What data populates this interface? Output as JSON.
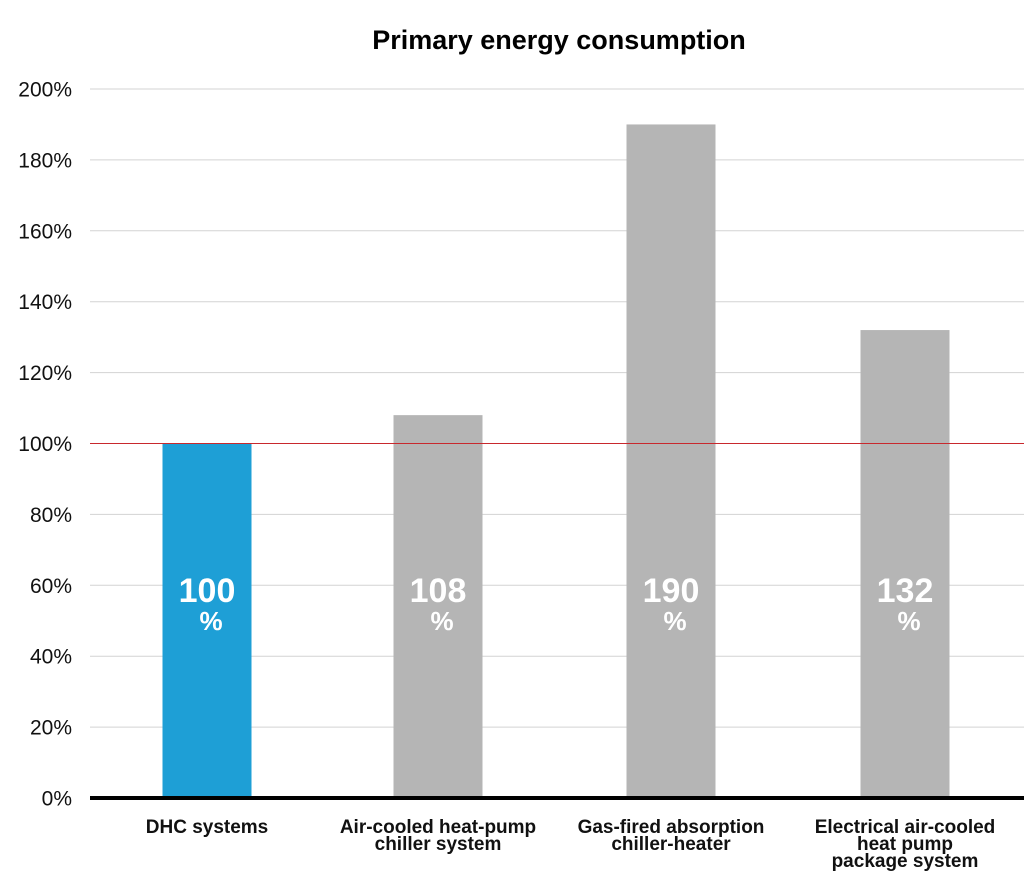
{
  "chart_data": {
    "type": "bar",
    "title": "Primary energy consumption",
    "xlabel": "",
    "ylabel": "",
    "ylim": [
      0,
      200
    ],
    "yticks": [
      0,
      20,
      40,
      60,
      80,
      100,
      120,
      140,
      160,
      180,
      200
    ],
    "ytick_labels": [
      "0%",
      "20%",
      "40%",
      "60%",
      "80%",
      "100%",
      "120%",
      "140%",
      "160%",
      "180%",
      "200%"
    ],
    "categories": [
      [
        "DHC systems"
      ],
      [
        "Air-cooled heat-pump",
        "chiller system"
      ],
      [
        "Gas-fired absorption",
        "chiller-heater"
      ],
      [
        "Electrical air-cooled",
        "heat pump",
        "package system"
      ]
    ],
    "values": [
      100,
      108,
      190,
      132
    ],
    "value_labels": [
      {
        "number": "100",
        "unit": "%"
      },
      {
        "number": "108",
        "unit": "%"
      },
      {
        "number": "190",
        "unit": "%"
      },
      {
        "number": "132",
        "unit": "%"
      }
    ],
    "reference_line": 100,
    "grid": true,
    "legend": "none"
  },
  "colors": {
    "highlight_bar": "#1e9fd6",
    "bar": "#b5b5b5",
    "highlight_label": "#2a9fd3",
    "reference_line": "#c8282d",
    "grid": "#d3d3d3",
    "axis": "#000000"
  }
}
